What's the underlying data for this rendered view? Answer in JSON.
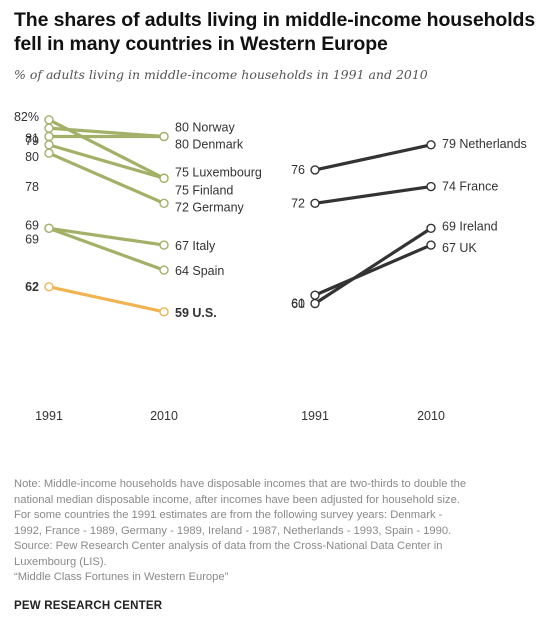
{
  "header": {
    "title": "The shares of adults living in middle-income households fell in many countries in Western Europe",
    "subtitle": "% of adults living in middle-income households in 1991 and 2010"
  },
  "colors": {
    "green": "#a3b068",
    "orange": "#f0b453",
    "dark": "#333333"
  },
  "chart_data": [
    {
      "type": "line",
      "x": [
        "1991",
        "2010"
      ],
      "series": [
        {
          "name": "Norway",
          "values": [
            81,
            80
          ],
          "color": "#a3b068"
        },
        {
          "name": "Denmark",
          "values": [
            80,
            80
          ],
          "color": "#a3b068"
        },
        {
          "name": "Luxembourg",
          "values": [
            79,
            75
          ],
          "color": "#a3b068"
        },
        {
          "name": "Finland",
          "values": [
            82,
            75
          ],
          "color": "#a3b068"
        },
        {
          "name": "Germany",
          "values": [
            78,
            72
          ],
          "color": "#a3b068"
        },
        {
          "name": "Italy",
          "values": [
            69,
            67
          ],
          "color": "#a3b068"
        },
        {
          "name": "Spain",
          "values": [
            69,
            64
          ],
          "color": "#a3b068"
        },
        {
          "name": "U.S.",
          "values": [
            62,
            59
          ],
          "color": "#f0b453"
        }
      ],
      "start_labels": [
        "82%",
        "81",
        "80",
        "79",
        "78",
        "69",
        "69",
        "62"
      ],
      "end_labels": [
        "80 Norway",
        "80 Denmark",
        "75 Luxembourg",
        "75 Finland",
        "72 Germany",
        "67 Italy",
        "64 Spain",
        "59 U.S."
      ]
    },
    {
      "type": "line",
      "x": [
        "1991",
        "2010"
      ],
      "series": [
        {
          "name": "Netherlands",
          "values": [
            76,
            79
          ],
          "color": "#333333"
        },
        {
          "name": "France",
          "values": [
            72,
            74
          ],
          "color": "#333333"
        },
        {
          "name": "Ireland",
          "values": [
            60,
            69
          ],
          "color": "#333333"
        },
        {
          "name": "UK",
          "values": [
            61,
            67
          ],
          "color": "#333333"
        }
      ],
      "start_labels": [
        "76",
        "72",
        "61",
        "60"
      ],
      "end_labels": [
        "79 Netherlands",
        "74 France",
        "69 Ireland",
        "67 UK"
      ]
    }
  ],
  "note": {
    "lines": [
      "Note: Middle-income households have disposable incomes that are two-thirds to double the",
      "national median disposable income, after incomes have been adjusted for household size.",
      "For some countries the 1991 estimates are from the following survey years: Denmark -",
      "1992, France - 1989, Germany - 1989, Ireland - 1987, Netherlands - 1993, Spain - 1990.",
      "Source: Pew Research Center analysis of data from the Cross-National Data Center in",
      "Luxembourg (LIS).",
      "“Middle Class Fortunes in Western Europe”"
    ]
  },
  "footer": {
    "org": "PEW RESEARCH CENTER"
  }
}
